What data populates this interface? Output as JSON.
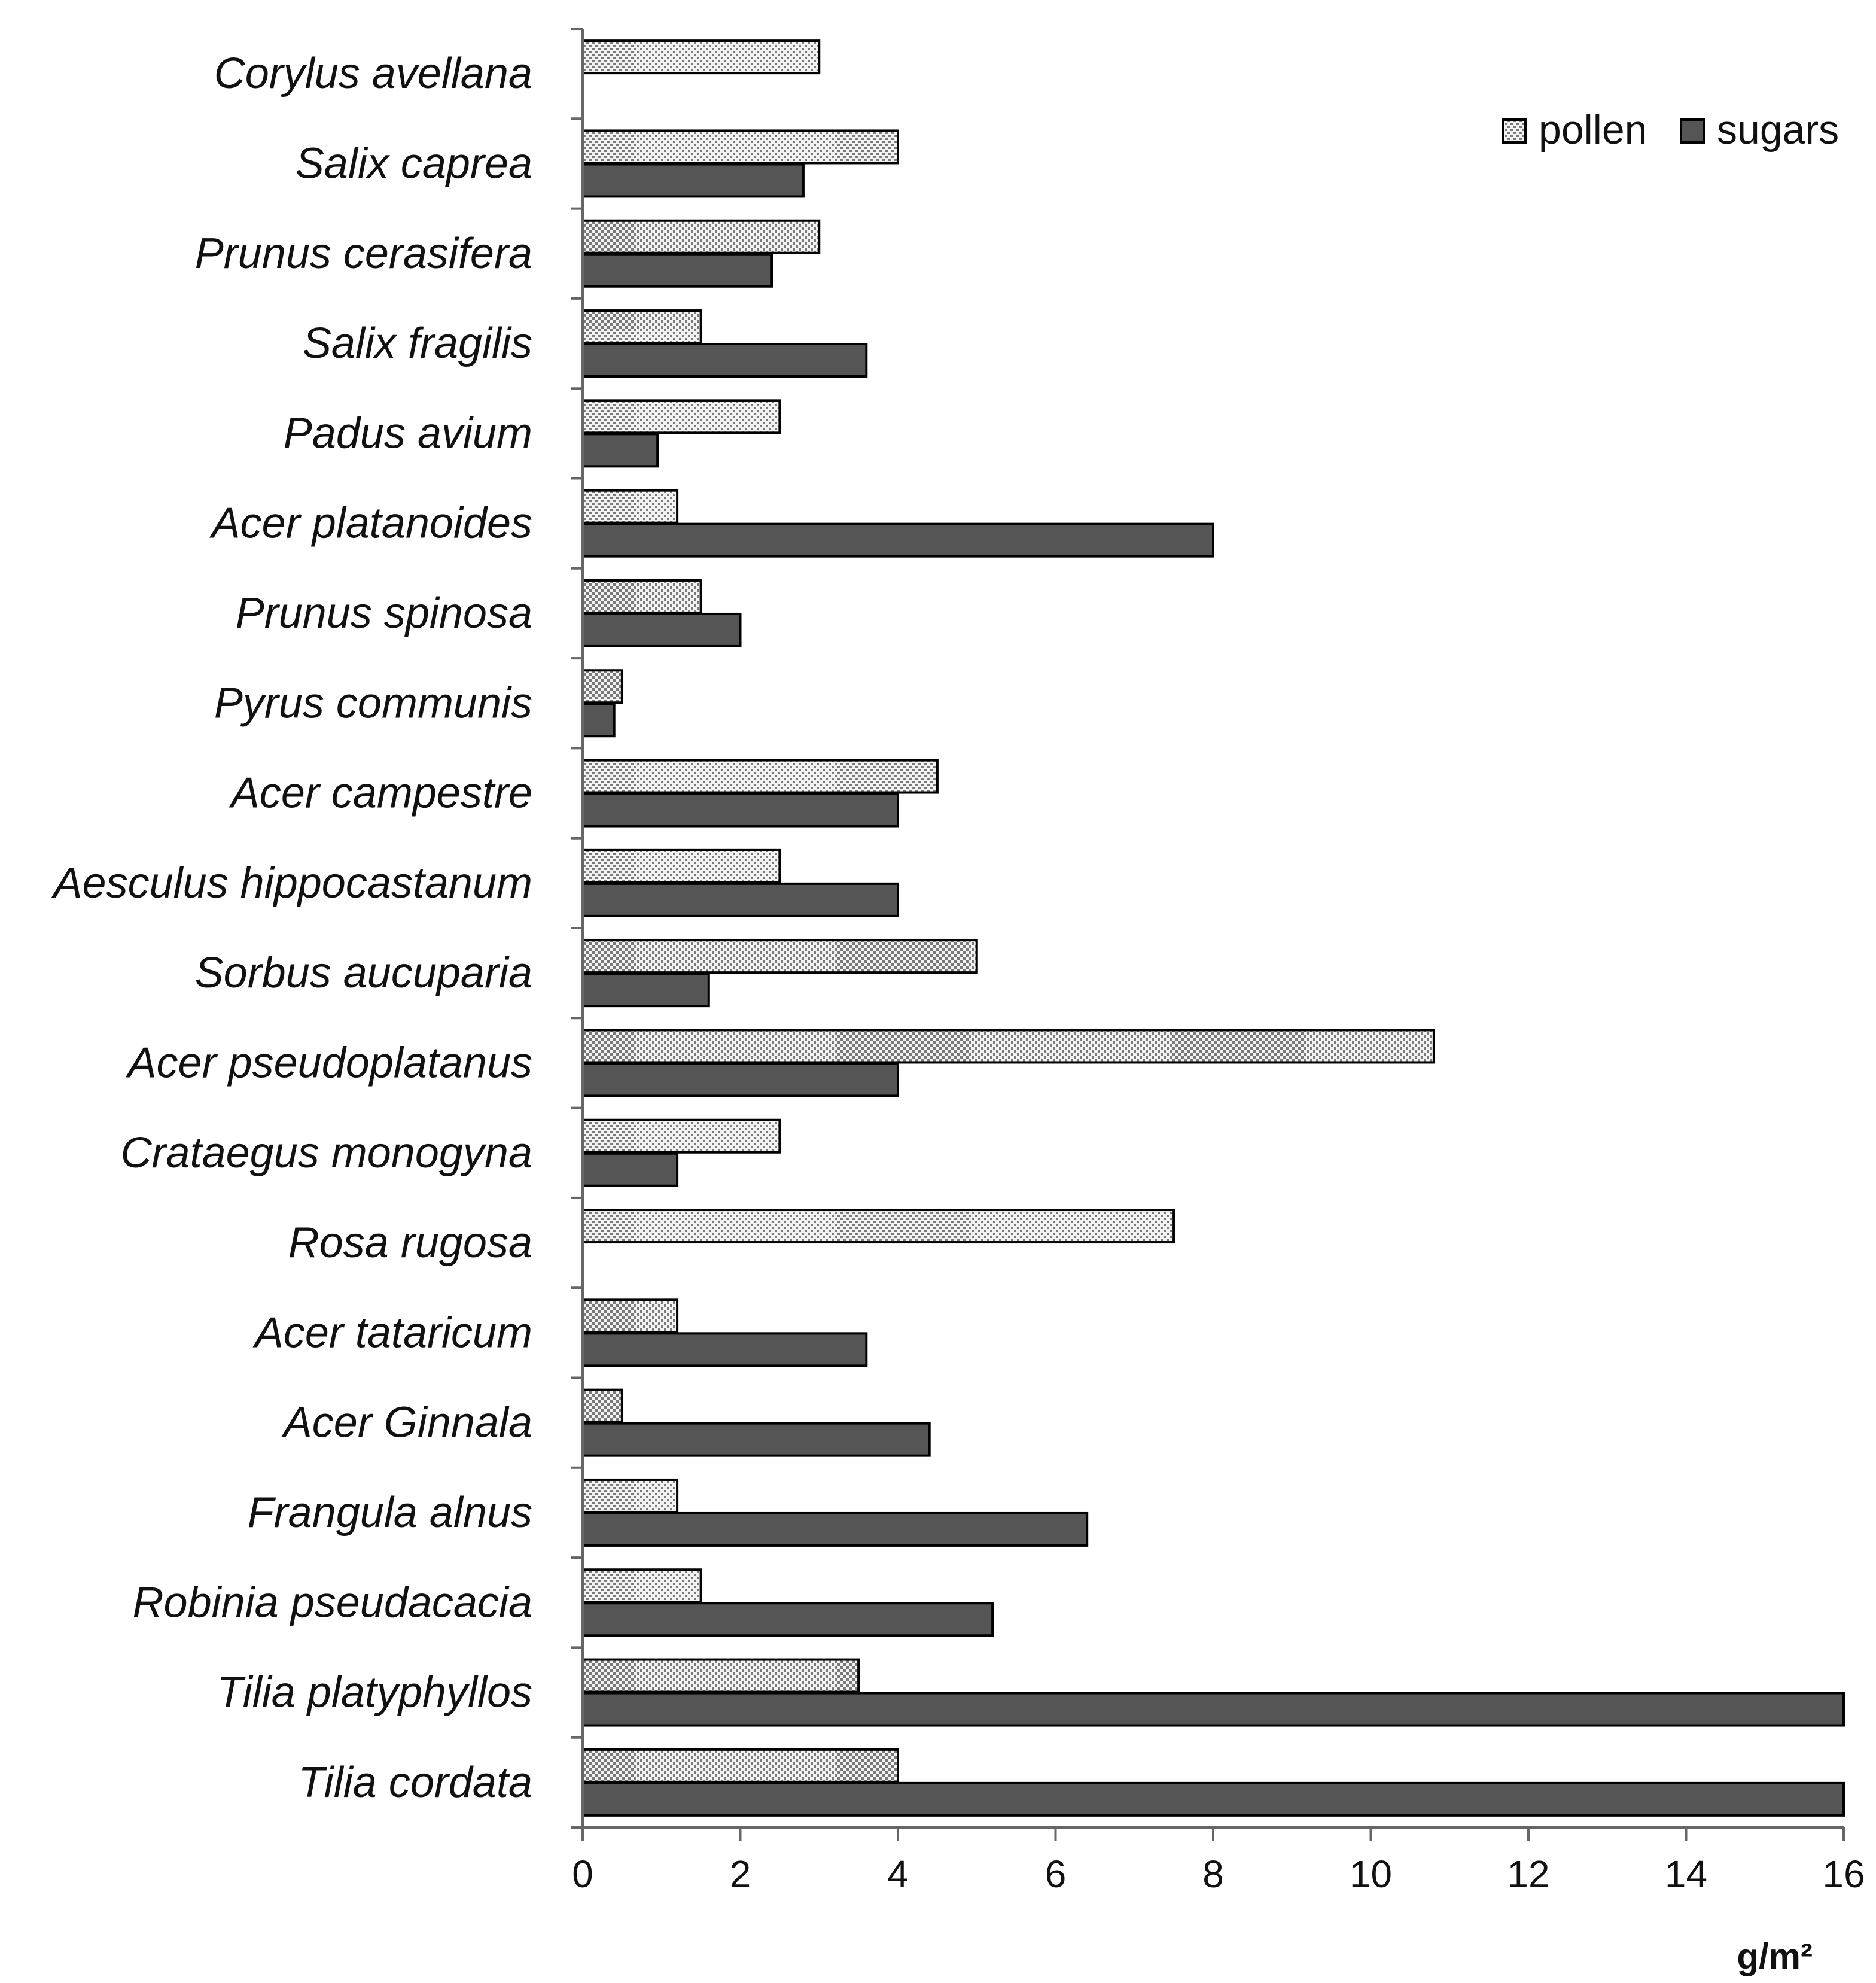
{
  "chart_data": {
    "type": "bar",
    "orientation": "horizontal",
    "categories": [
      "Corylus avellana",
      "Salix caprea",
      "Prunus cerasifera",
      "Salix fragilis",
      "Padus avium",
      "Acer platanoides",
      "Prunus spinosa",
      "Pyrus communis",
      "Acer campestre",
      "Aesculus hippocastanum",
      "Sorbus aucuparia",
      "Acer pseudoplatanus",
      "Crataegus monogyna",
      "Rosa rugosa",
      "Acer tataricum",
      "Acer Ginnala",
      "Frangula alnus",
      "Robinia pseudacacia",
      "Tilia platyphyllos",
      "Tilia cordata"
    ],
    "series": [
      {
        "name": "pollen",
        "color": "#dddddd",
        "pattern": "dotted",
        "values": [
          3,
          4,
          3,
          1.5,
          2.5,
          1.2,
          1.5,
          0.5,
          4.5,
          2.5,
          5,
          10.8,
          2.5,
          7.5,
          1.2,
          0.5,
          1.2,
          1.5,
          3.5,
          4
        ]
      },
      {
        "name": "sugars",
        "color": "#555555",
        "pattern": "solid",
        "values": [
          0,
          2.8,
          2.4,
          3.6,
          0.95,
          8,
          2,
          0.4,
          4,
          4,
          1.6,
          4,
          1.2,
          0,
          3.6,
          4.4,
          6.4,
          5.2,
          16,
          16
        ]
      }
    ],
    "xlabel": "g/m²",
    "ylabel": "",
    "xlim": [
      0,
      16
    ],
    "xticks": [
      "0",
      "2",
      "4",
      "6",
      "8",
      "10",
      "12",
      "14",
      "16"
    ],
    "grid": false,
    "legend_position": "top-right"
  }
}
